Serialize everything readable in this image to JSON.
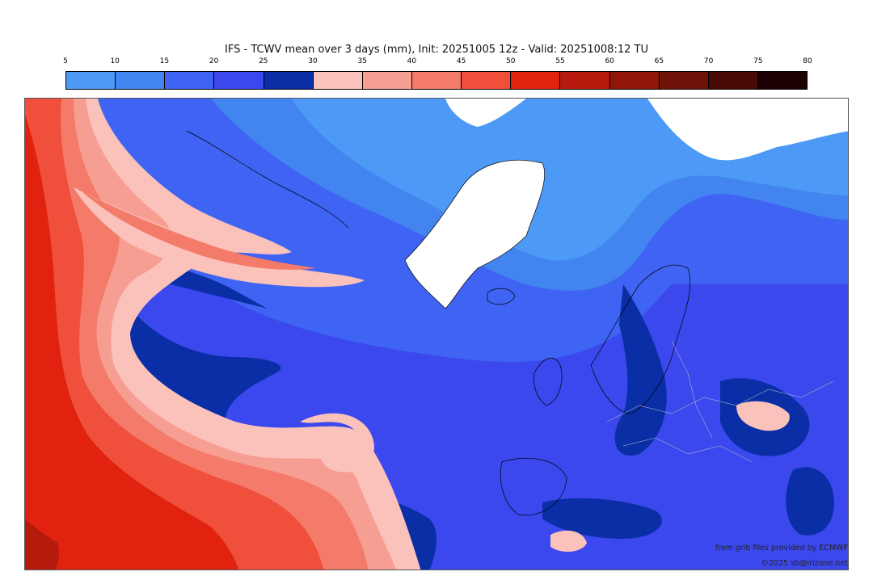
{
  "title": "IFS - TCWV mean over 3 days (mm), Init: 20251005 12z - Valid: 20251008:12 TU",
  "colorbar": {
    "ticks": [
      "5",
      "10",
      "15",
      "20",
      "25",
      "30",
      "35",
      "40",
      "45",
      "50",
      "55",
      "60",
      "65",
      "70",
      "75",
      "80"
    ],
    "colors": [
      "#4c9af5",
      "#4285f1",
      "#3f63f2",
      "#3b48ee",
      "#0a2ea5",
      "#fbc2bb",
      "#f79e93",
      "#f47a6a",
      "#f04f3c",
      "#e0220f",
      "#b51a0d",
      "#8f1609",
      "#701208",
      "#4a0a05",
      "#1c0202"
    ]
  },
  "map": {
    "colors": {
      "ice": "#ffffff",
      "level_5_10": "#4c9af5",
      "level_10_15": "#4285f1",
      "level_15_20": "#3f63f2",
      "level_20_25": "#3b48ee",
      "level_25_30": "#0a2ea5",
      "level_30_35": "#fbc2bb",
      "level_35_40": "#f79e93",
      "level_40_45": "#f47a6a",
      "level_45_50": "#f04f3c",
      "level_50_55": "#e0220f",
      "level_55_60": "#b51a0d",
      "coastline": "#000000",
      "border": "#cccccc"
    }
  },
  "credits": {
    "source": "from grib files provided by ECMWF",
    "copyright": "©2025 sb@irizone.net"
  }
}
